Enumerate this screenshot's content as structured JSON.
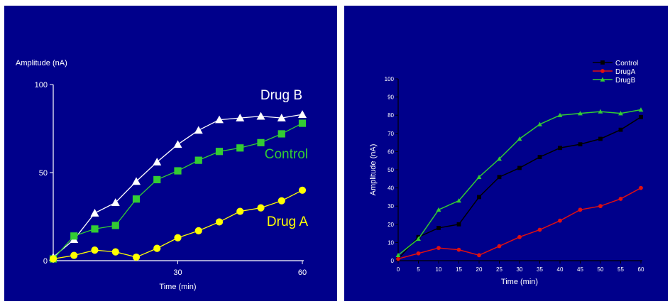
{
  "chart_data": [
    {
      "type": "line",
      "title": "",
      "xlabel": "Time (min)",
      "ylabel": "Amplitude (nA)",
      "xlim": [
        0,
        60
      ],
      "ylim": [
        0,
        100
      ],
      "x_ticks": [
        "30",
        "60"
      ],
      "y_ticks": [
        "0",
        "50",
        "100"
      ],
      "x": [
        0,
        5,
        10,
        15,
        20,
        25,
        30,
        35,
        40,
        45,
        50,
        55,
        60
      ],
      "series": [
        {
          "name": "Drug B",
          "marker": "triangle",
          "color": "#ffffff",
          "values": [
            2,
            12,
            27,
            33,
            45,
            56,
            66,
            74,
            80,
            81,
            82,
            81,
            83
          ]
        },
        {
          "name": "Control",
          "marker": "square",
          "color": "#33cc33",
          "values": [
            1,
            14,
            18,
            20,
            35,
            46,
            51,
            57,
            62,
            64,
            67,
            72,
            78
          ]
        },
        {
          "name": "Drug A",
          "marker": "circle",
          "color": "#ffff00",
          "values": [
            1,
            3,
            6,
            5,
            2,
            7,
            13,
            17,
            22,
            28,
            30,
            34,
            40
          ]
        }
      ],
      "grid": false,
      "legend": "inline labels"
    },
    {
      "type": "line",
      "title": "",
      "xlabel": "Time (min)",
      "ylabel": "Amplitude (nA)",
      "xlim": [
        0,
        60
      ],
      "ylim": [
        0,
        100
      ],
      "x_ticks": [
        "0",
        "5",
        "10",
        "15",
        "20",
        "25",
        "30",
        "35",
        "40",
        "45",
        "50",
        "55",
        "60"
      ],
      "y_ticks": [
        "0",
        "10",
        "20",
        "30",
        "40",
        "50",
        "60",
        "70",
        "80",
        "90",
        "100"
      ],
      "x": [
        0,
        5,
        10,
        15,
        20,
        25,
        30,
        35,
        40,
        45,
        50,
        55,
        60
      ],
      "series": [
        {
          "name": "Control",
          "marker": "square",
          "color": "#000000",
          "values": [
            1,
            13,
            18,
            20,
            35,
            46,
            51,
            57,
            62,
            64,
            67,
            72,
            79
          ]
        },
        {
          "name": "DrugA",
          "marker": "circle",
          "color": "#e01010",
          "values": [
            1,
            4,
            7,
            6,
            3,
            8,
            13,
            17,
            22,
            28,
            30,
            34,
            40
          ]
        },
        {
          "name": "DrugB",
          "marker": "triangle",
          "color": "#33cc33",
          "values": [
            3,
            12,
            28,
            33,
            46,
            56,
            67,
            75,
            80,
            81,
            82,
            81,
            83
          ]
        }
      ],
      "grid": false,
      "legend": "top-right"
    }
  ]
}
